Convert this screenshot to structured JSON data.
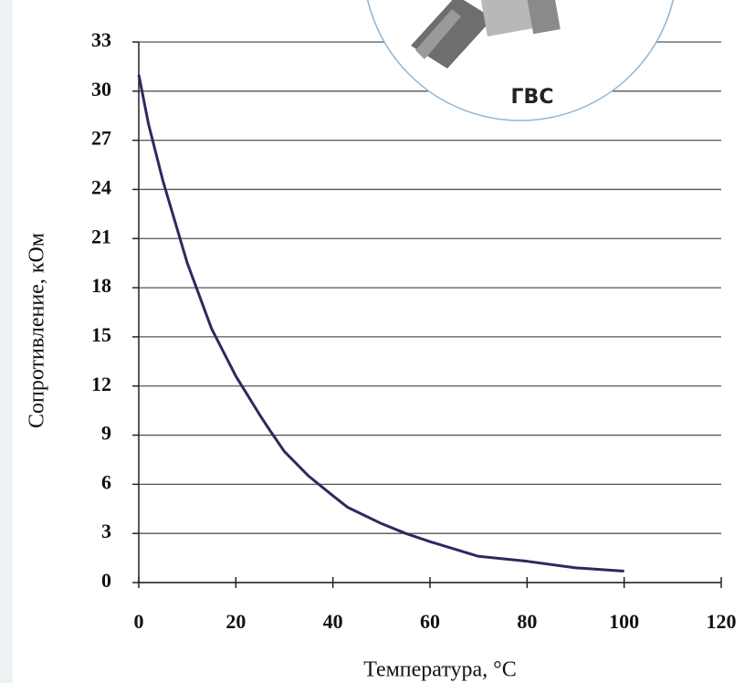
{
  "chart_data": {
    "type": "line",
    "x_label": "Температура, °C",
    "y_label": "Сопротивление, кОм",
    "annotation": "ГВС",
    "x": [
      0,
      2,
      5,
      10,
      15,
      20,
      25,
      27,
      30,
      35,
      40,
      43,
      50,
      55,
      60,
      70,
      80,
      90,
      100
    ],
    "series": [
      {
        "color": "#2e2a5e",
        "values": [
          31,
          28,
          24.5,
          19.5,
          15.5,
          12.6,
          10.2,
          9.3,
          8,
          6.5,
          5.3,
          4.6,
          3.6,
          3.0,
          2.5,
          1.6,
          1.3,
          0.9,
          0.7
        ]
      }
    ],
    "xlim": [
      0,
      120
    ],
    "xticks": [
      0,
      20,
      40,
      60,
      80,
      100,
      120
    ],
    "ylim": [
      0,
      33
    ],
    "yticks": [
      0,
      3,
      6,
      9,
      12,
      15,
      18,
      21,
      24,
      27,
      30,
      33
    ],
    "grid": true
  }
}
